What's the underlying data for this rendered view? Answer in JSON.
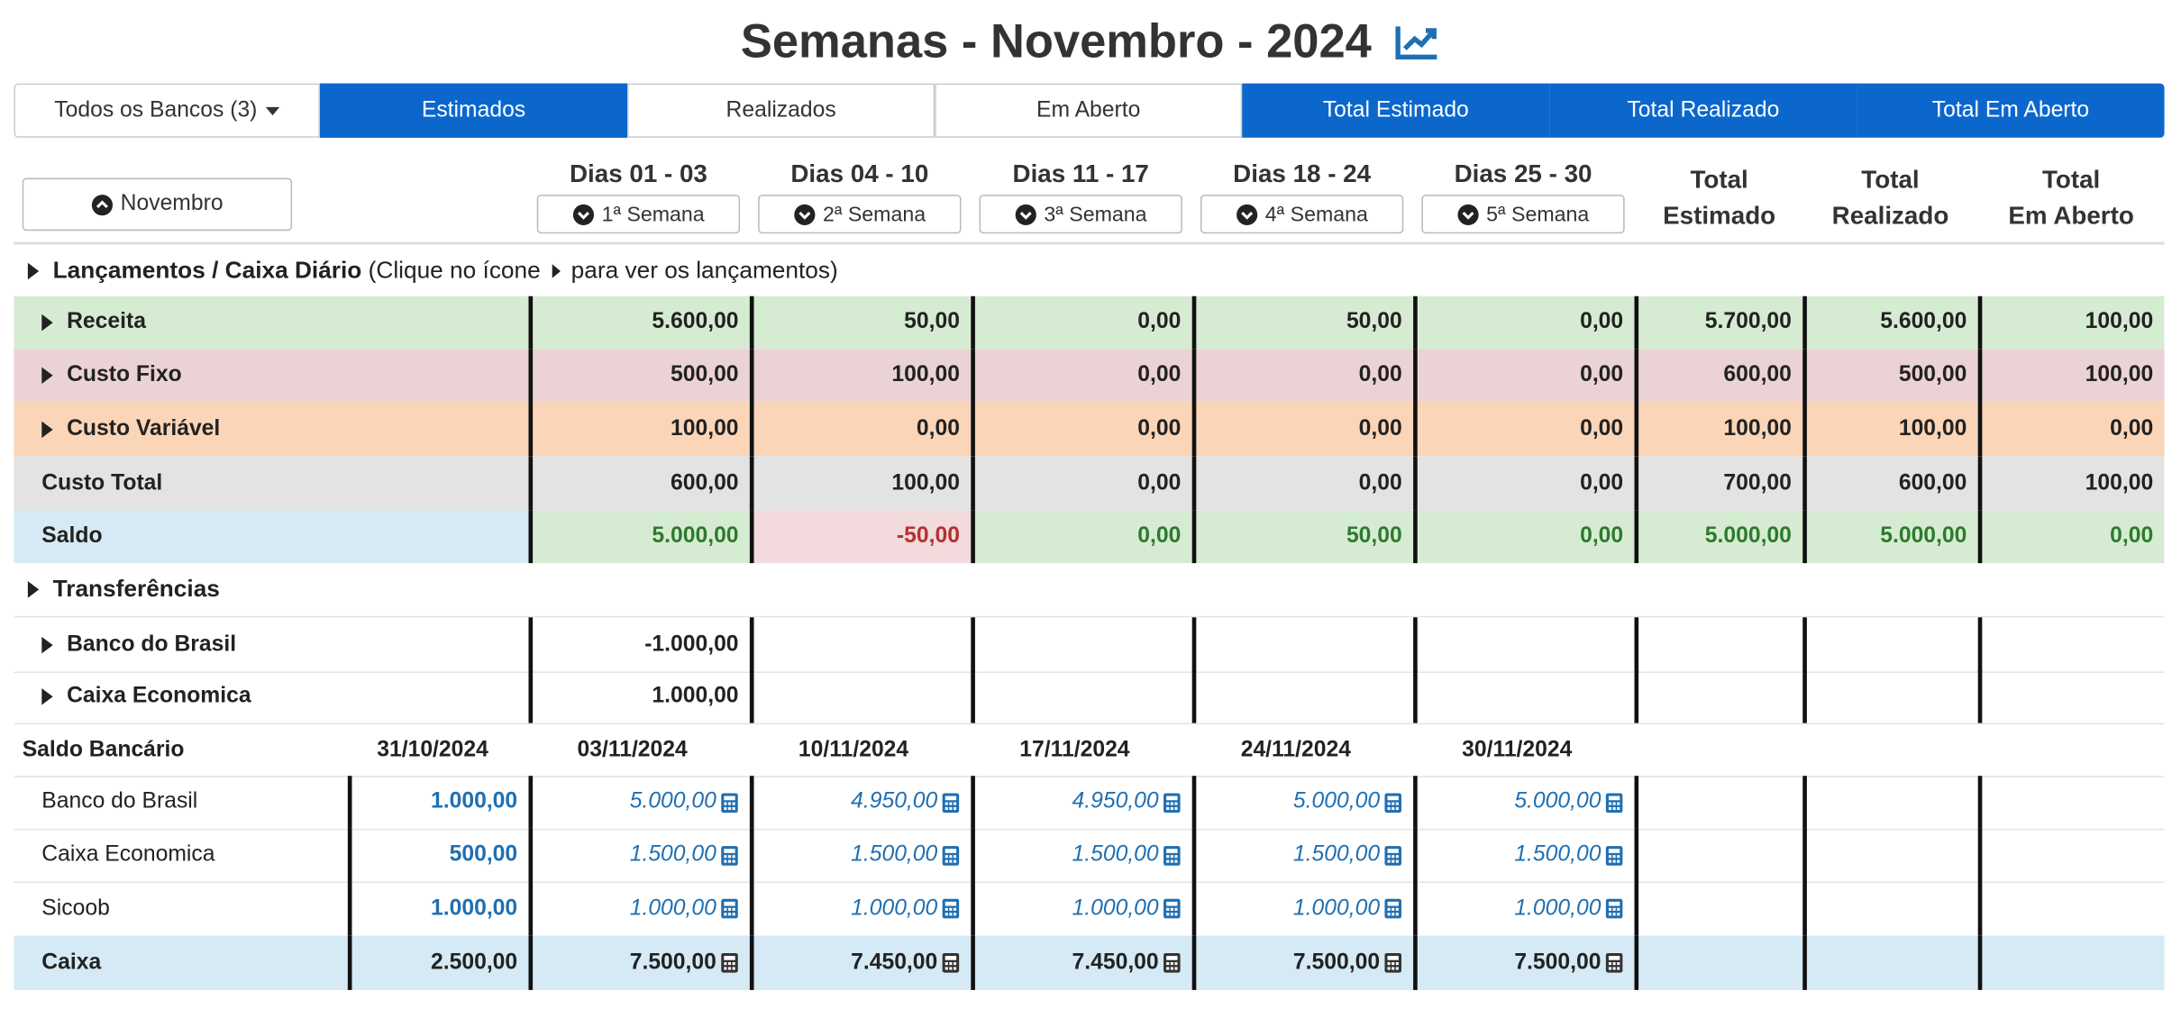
{
  "title": "Semanas - Novembro - 2024",
  "icons": {
    "chart": "chart-line-icon",
    "calc": "calculator-icon"
  },
  "colors": {
    "accent": "#0b67cc",
    "positive": "#2d7a2d",
    "negative": "#b53030",
    "link": "#1f6fb2"
  },
  "tabs": {
    "banks": "Todos os Bancos (3)",
    "estimados": "Estimados",
    "realizados": "Realizados",
    "em_aberto": "Em Aberto",
    "total_estimado": "Total Estimado",
    "total_realizado": "Total Realizado",
    "total_em_aberto": "Total Em Aberto"
  },
  "month_button": "Novembro",
  "weeks": [
    {
      "dias": "Dias 01 - 03",
      "semana": "1ª Semana"
    },
    {
      "dias": "Dias 04 - 10",
      "semana": "2ª Semana"
    },
    {
      "dias": "Dias 11 - 17",
      "semana": "3ª Semana"
    },
    {
      "dias": "Dias 18 - 24",
      "semana": "4ª Semana"
    },
    {
      "dias": "Dias 25 - 30",
      "semana": "5ª Semana"
    }
  ],
  "totals_header": [
    {
      "l1": "Total",
      "l2": "Estimado"
    },
    {
      "l1": "Total",
      "l2": "Realizado"
    },
    {
      "l1": "Total",
      "l2": "Em Aberto"
    }
  ],
  "lancamentos": {
    "bold": "Lançamentos / Caixa Diário",
    "pre": "(Clique no ícone",
    "post": "para ver os lançamentos)"
  },
  "rows": {
    "receita": {
      "label": "Receita",
      "values": [
        "5.600,00",
        "50,00",
        "0,00",
        "50,00",
        "0,00",
        "5.700,00",
        "5.600,00",
        "100,00"
      ]
    },
    "custo_fixo": {
      "label": "Custo Fixo",
      "values": [
        "500,00",
        "100,00",
        "0,00",
        "0,00",
        "0,00",
        "600,00",
        "500,00",
        "100,00"
      ]
    },
    "custo_variavel": {
      "label": "Custo Variável",
      "values": [
        "100,00",
        "0,00",
        "0,00",
        "0,00",
        "0,00",
        "100,00",
        "100,00",
        "0,00"
      ]
    },
    "custo_total": {
      "label": "Custo Total",
      "values": [
        "600,00",
        "100,00",
        "0,00",
        "0,00",
        "0,00",
        "700,00",
        "600,00",
        "100,00"
      ]
    },
    "saldo": {
      "label": "Saldo",
      "values": [
        "5.000,00",
        "-50,00",
        "0,00",
        "50,00",
        "0,00",
        "5.000,00",
        "5.000,00",
        "0,00"
      ]
    }
  },
  "transferencias": {
    "title": "Transferências",
    "items": [
      {
        "label": "Banco do Brasil",
        "value": "-1.000,00"
      },
      {
        "label": "Caixa Economica",
        "value": "1.000,00"
      }
    ]
  },
  "saldo_bancario": {
    "title": "Saldo Bancário",
    "dates": [
      "31/10/2024",
      "03/11/2024",
      "10/11/2024",
      "17/11/2024",
      "24/11/2024",
      "30/11/2024"
    ],
    "banks": [
      {
        "label": "Banco do Brasil",
        "values": [
          "1.000,00",
          "5.000,00",
          "4.950,00",
          "4.950,00",
          "5.000,00",
          "5.000,00"
        ]
      },
      {
        "label": "Caixa Economica",
        "values": [
          "500,00",
          "1.500,00",
          "1.500,00",
          "1.500,00",
          "1.500,00",
          "1.500,00"
        ]
      },
      {
        "label": "Sicoob",
        "values": [
          "1.000,00",
          "1.000,00",
          "1.000,00",
          "1.000,00",
          "1.000,00",
          "1.000,00"
        ]
      }
    ],
    "caixa": {
      "label": "Caixa",
      "values": [
        "2.500,00",
        "7.500,00",
        "7.450,00",
        "7.450,00",
        "7.500,00",
        "7.500,00"
      ]
    }
  }
}
